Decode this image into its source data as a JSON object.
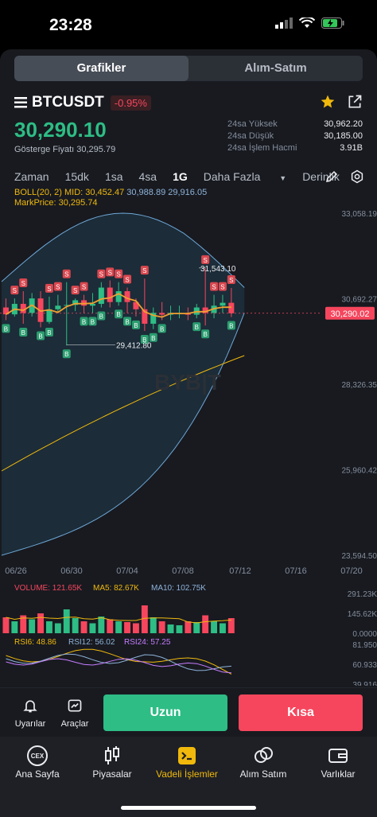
{
  "status_bar": {
    "time": "23:28"
  },
  "top_tabs": [
    "Grafikler",
    "Alım-Satım"
  ],
  "symbol": {
    "name": "BTCUSDT",
    "change": "-0.95%"
  },
  "price": {
    "last": "30,290.10",
    "mark_label": "Gösterge Fiyatı 30,295.79"
  },
  "stats": [
    {
      "label": "24sa Yüksek",
      "value": "30,962.20"
    },
    {
      "label": "24sa Düşük",
      "value": "30,185.00"
    },
    {
      "label": "24sa İşlem Hacmi",
      "value": "3.91B"
    }
  ],
  "timeframes": [
    "Zaman",
    "15dk",
    "1sa",
    "4sa",
    "1G",
    "Daha Fazla",
    "Derinlik"
  ],
  "indicators": {
    "boll_prefix": "BOLL(20, 2) MID: 30,452.47",
    "boll_up": "30,988.89",
    "boll_dn": "29,916.05",
    "markprice": "MarkPrice: 30,295.74"
  },
  "chart_data": {
    "type": "candlestick",
    "y_ticks": [
      "33,058.19",
      "30,692.27",
      "28,326.35",
      "25,960.42",
      "23,594.50"
    ],
    "ylim": [
      23594.5,
      33058.19
    ],
    "x_ticks": [
      "06/26",
      "06/30",
      "07/04",
      "07/08",
      "07/12",
      "07/16",
      "07/20"
    ],
    "current_price_tag": "30,290.02",
    "high_label": "31,543.10",
    "low_label": "29,412.80",
    "watermark": "BYB|T",
    "candles": [
      {
        "o": 30450,
        "c": 30260,
        "h": 30700,
        "l": 30100,
        "s": 0,
        "b": 1
      },
      {
        "o": 30260,
        "c": 30550,
        "h": 30700,
        "l": 30200,
        "s": 1,
        "b": 0
      },
      {
        "o": 30550,
        "c": 30300,
        "h": 30900,
        "l": 30000,
        "s": 1,
        "b": 1
      },
      {
        "o": 30300,
        "c": 30700,
        "h": 30850,
        "l": 30200,
        "s": 0,
        "b": 0
      },
      {
        "o": 30700,
        "c": 30050,
        "h": 30900,
        "l": 29900,
        "s": 0,
        "b": 1
      },
      {
        "o": 30050,
        "c": 30400,
        "h": 30750,
        "l": 30000,
        "s": 1,
        "b": 1
      },
      {
        "o": 30400,
        "c": 30500,
        "h": 30800,
        "l": 30300,
        "s": 1,
        "b": 0
      },
      {
        "o": 30500,
        "c": 30520,
        "h": 31150,
        "l": 29400,
        "s": 1,
        "b": 1
      },
      {
        "o": 30520,
        "c": 30650,
        "h": 30700,
        "l": 30350,
        "s": 1,
        "b": 0
      },
      {
        "o": 30650,
        "c": 30500,
        "h": 30800,
        "l": 30300,
        "s": 1,
        "b": 1
      },
      {
        "o": 30500,
        "c": 30550,
        "h": 30850,
        "l": 30300,
        "s": 0,
        "b": 1
      },
      {
        "o": 30550,
        "c": 31000,
        "h": 31150,
        "l": 30450,
        "s": 1,
        "b": 1
      },
      {
        "o": 31000,
        "c": 30600,
        "h": 31200,
        "l": 30450,
        "s": 1,
        "b": 0
      },
      {
        "o": 30600,
        "c": 30900,
        "h": 31150,
        "l": 30500,
        "s": 1,
        "b": 1
      },
      {
        "o": 30900,
        "c": 30600,
        "h": 31000,
        "l": 30300,
        "s": 1,
        "b": 1
      },
      {
        "o": 30600,
        "c": 30400,
        "h": 30700,
        "l": 30200,
        "s": 0,
        "b": 1
      },
      {
        "o": 30400,
        "c": 30000,
        "h": 31250,
        "l": 29800,
        "s": 1,
        "b": 1
      },
      {
        "o": 30000,
        "c": 30300,
        "h": 30450,
        "l": 29850,
        "s": 0,
        "b": 1
      },
      {
        "o": 30300,
        "c": 30250,
        "h": 30600,
        "l": 30100,
        "s": 0,
        "b": 1
      },
      {
        "o": 30250,
        "c": 30300,
        "h": 30500,
        "l": 30100,
        "s": 0,
        "b": 0
      },
      {
        "o": 30300,
        "c": 30300,
        "h": 30500,
        "l": 30150,
        "s": 0,
        "b": 0
      },
      {
        "o": 30300,
        "c": 30250,
        "h": 30450,
        "l": 30100,
        "s": 0,
        "b": 0
      },
      {
        "o": 30250,
        "c": 30450,
        "h": 30550,
        "l": 30150,
        "s": 0,
        "b": 1
      },
      {
        "o": 30450,
        "c": 30300,
        "h": 31543,
        "l": 29950,
        "s": 1,
        "b": 1
      },
      {
        "o": 30300,
        "c": 30500,
        "h": 30800,
        "l": 30150,
        "s": 1,
        "b": 0
      },
      {
        "o": 30500,
        "c": 30580,
        "h": 30800,
        "l": 30300,
        "s": 1,
        "b": 0
      },
      {
        "o": 30580,
        "c": 30290,
        "h": 30990,
        "l": 30185,
        "s": 1,
        "b": 1
      }
    ],
    "volume_label": "VOLUME: 121.65K",
    "ma5_label": "MA5: 82.67K",
    "ma10_label": "MA10: 102.75K",
    "volume_ticks": [
      "291.23K",
      "145.62K",
      "0.0000"
    ],
    "rsi_labels": [
      "RSI6: 48.86",
      "RSI12: 56.02",
      "RSI24: 57.25"
    ],
    "rsi_ticks": [
      "81.950",
      "60.933",
      "39.916"
    ]
  },
  "actions": {
    "alerts": "Uyarılar",
    "tools": "Araçlar",
    "long": "Uzun",
    "short": "Kısa"
  },
  "nav": [
    "Ana Sayfa",
    "Piyasalar",
    "Vadeli İşlemler",
    "Alım Satım",
    "Varlıklar"
  ],
  "nav_cex": "CEX",
  "colors": {
    "up": "#2ebd85",
    "down": "#f6465d",
    "accent": "#f0b90b",
    "bg": "#181a20"
  }
}
